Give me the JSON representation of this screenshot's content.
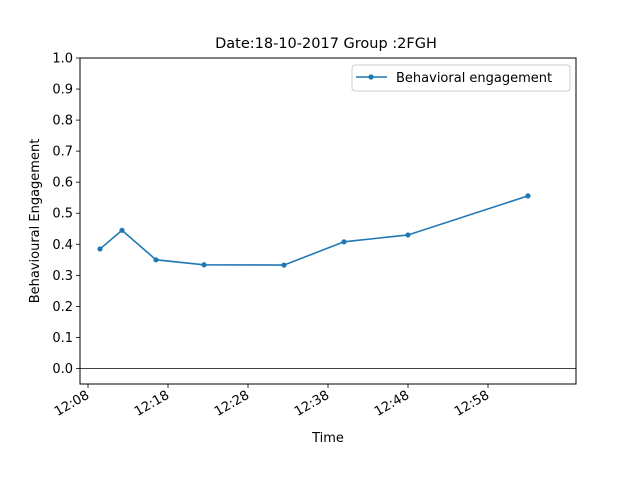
{
  "chart_data": {
    "type": "line",
    "title": "Date:18-10-2017 Group :2FGH",
    "xlabel": "Time",
    "ylabel": "Behavioural Engagement",
    "ylim": [
      -0.05,
      1.0
    ],
    "xlim": [
      "12:07:00",
      "13:09:00"
    ],
    "yticks": [
      0.0,
      0.1,
      0.2,
      0.3,
      0.4,
      0.5,
      0.6,
      0.7,
      0.8,
      0.9,
      1.0
    ],
    "ytick_labels": [
      "0.0",
      "0.1",
      "0.2",
      "0.3",
      "0.4",
      "0.5",
      "0.6",
      "0.7",
      "0.8",
      "0.9",
      "1.0"
    ],
    "xtick_labels": [
      "12:08",
      "12:18",
      "12:28",
      "12:38",
      "12:48",
      "12:58"
    ],
    "zero_line": true,
    "grid": false,
    "legend_position": "top-right",
    "series": [
      {
        "name": "Behavioral engagement",
        "color": "#1f77b4",
        "marker": "dot",
        "x": [
          "12:09:30",
          "12:12:15",
          "12:16:30",
          "12:22:30",
          "12:32:30",
          "12:40:00",
          "12:48:00",
          "12:63:00"
        ],
        "y": [
          0.385,
          0.445,
          0.35,
          0.334,
          0.333,
          0.408,
          0.43,
          0.556
        ]
      }
    ]
  }
}
